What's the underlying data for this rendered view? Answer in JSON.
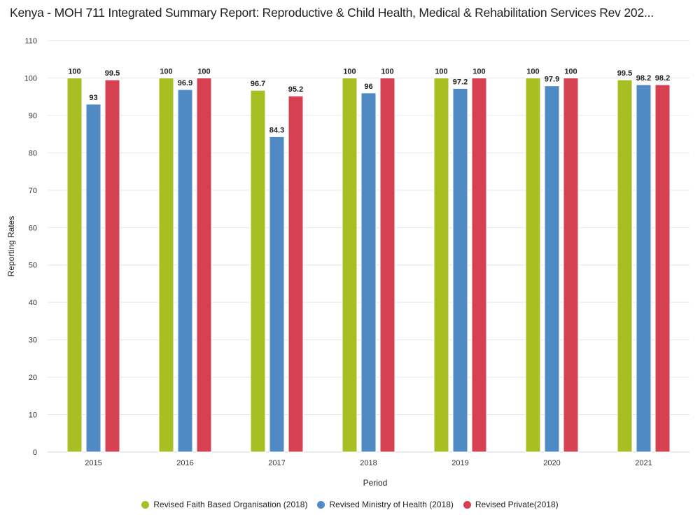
{
  "chart_data": {
    "type": "bar",
    "title": "Kenya - MOH 711 Integrated Summary Report: Reproductive & Child Health, Medical & Rehabilitation Services Rev 202...",
    "xlabel": "Period",
    "ylabel": "Reporting Rates",
    "ylim": [
      0,
      110
    ],
    "yticks": [
      0,
      10,
      20,
      30,
      40,
      50,
      60,
      70,
      80,
      90,
      100,
      110
    ],
    "grid": true,
    "legend_position": "bottom",
    "categories": [
      "2015",
      "2016",
      "2017",
      "2018",
      "2019",
      "2020",
      "2021"
    ],
    "series": [
      {
        "name": "Revised Faith Based Organisation (2018)",
        "color": "#a8bf24",
        "values": [
          100,
          100,
          96.7,
          100,
          100,
          100,
          99.5
        ]
      },
      {
        "name": "Revised Ministry of Health (2018)",
        "color": "#4f8ac5",
        "values": [
          93,
          96.9,
          84.3,
          96,
          97.2,
          97.9,
          98.2
        ]
      },
      {
        "name": "Revised Private(2018)",
        "color": "#d64151",
        "values": [
          99.5,
          100,
          95.2,
          100,
          100,
          100,
          98.2
        ]
      }
    ]
  }
}
